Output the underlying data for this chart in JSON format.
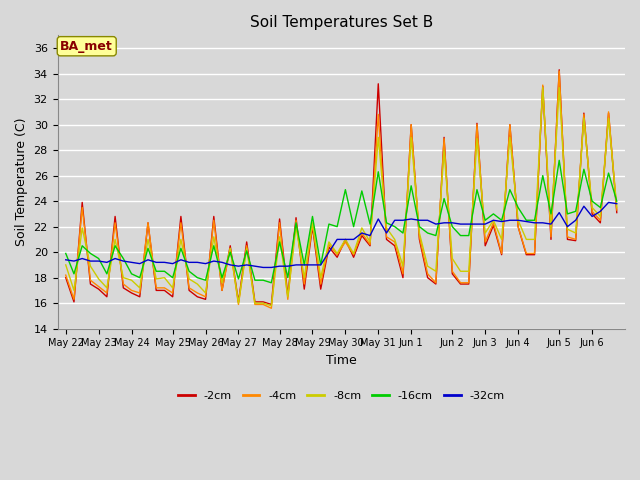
{
  "title": "Soil Temperatures Set B",
  "xlabel": "Time",
  "ylabel": "Soil Temperature (C)",
  "annotation": "BA_met",
  "ylim": [
    14,
    37
  ],
  "yticks": [
    14,
    16,
    18,
    20,
    22,
    24,
    26,
    28,
    30,
    32,
    34,
    36
  ],
  "background_color": "#d8d8d8",
  "legend_entries": [
    "-2cm",
    "-4cm",
    "-8cm",
    "-16cm",
    "-32cm"
  ],
  "line_colors": [
    "#cc0000",
    "#ff8800",
    "#cccc00",
    "#00cc00",
    "#0000cc"
  ],
  "x_labels": [
    "May 22",
    "May 23",
    "May 24",
    "May 25",
    "May 26",
    "May 27",
    "May 28",
    "May 29",
    "May 30",
    "May 31",
    "Jun 1",
    "Jun 2",
    "Jun 3",
    "Jun 4",
    "Jun 5",
    "Jun 6"
  ],
  "series": {
    "d2cm": [
      18.0,
      16.1,
      23.9,
      17.5,
      17.1,
      16.5,
      22.8,
      17.2,
      16.8,
      16.5,
      22.3,
      17.0,
      17.0,
      16.5,
      22.8,
      17.0,
      16.5,
      16.3,
      22.8,
      17.0,
      20.5,
      16.1,
      20.8,
      16.1,
      16.1,
      15.9,
      22.6,
      16.6,
      22.7,
      17.1,
      22.0,
      17.1,
      20.4,
      19.6,
      21.0,
      19.6,
      21.3,
      20.5,
      33.2,
      21.0,
      20.5,
      18.0,
      30.0,
      21.0,
      18.0,
      17.5,
      29.0,
      18.3,
      17.5,
      17.5,
      30.1,
      20.5,
      22.1,
      19.8,
      30.0,
      22.0,
      19.8,
      19.8,
      33.0,
      21.0,
      34.3,
      21.0,
      20.9,
      30.9,
      23.0,
      22.3,
      30.9,
      23.1
    ],
    "d4cm": [
      18.2,
      16.3,
      23.5,
      17.8,
      17.3,
      16.8,
      22.3,
      17.5,
      17.0,
      16.8,
      22.3,
      17.2,
      17.2,
      16.8,
      22.3,
      17.2,
      16.8,
      16.5,
      22.5,
      17.0,
      20.3,
      15.9,
      20.5,
      15.9,
      15.9,
      15.6,
      22.3,
      16.3,
      22.5,
      17.5,
      22.2,
      17.5,
      20.6,
      19.8,
      20.8,
      19.8,
      21.5,
      20.6,
      30.8,
      21.2,
      20.8,
      18.3,
      30.0,
      21.2,
      18.3,
      17.6,
      28.9,
      18.5,
      17.6,
      17.6,
      30.0,
      20.8,
      22.3,
      19.9,
      30.0,
      22.0,
      19.9,
      19.9,
      33.1,
      21.2,
      34.2,
      21.2,
      21.0,
      30.8,
      23.2,
      22.5,
      31.0,
      23.3
    ],
    "d8cm": [
      19.0,
      17.0,
      21.9,
      18.9,
      17.9,
      17.2,
      21.0,
      18.0,
      17.8,
      17.2,
      21.0,
      17.9,
      18.0,
      17.2,
      21.0,
      17.9,
      17.5,
      16.8,
      21.2,
      17.6,
      20.3,
      16.0,
      20.3,
      16.0,
      16.0,
      15.8,
      21.2,
      16.5,
      22.0,
      18.0,
      22.3,
      18.0,
      20.8,
      19.9,
      21.0,
      19.9,
      21.9,
      20.8,
      29.0,
      21.9,
      21.0,
      18.9,
      29.0,
      21.5,
      18.9,
      18.5,
      28.0,
      19.5,
      18.5,
      18.5,
      28.9,
      21.5,
      22.5,
      21.0,
      29.0,
      22.5,
      21.0,
      21.0,
      32.9,
      21.8,
      32.9,
      21.8,
      21.5,
      30.5,
      23.5,
      22.8,
      30.5,
      23.5
    ],
    "d16cm": [
      19.9,
      18.3,
      20.5,
      19.9,
      19.5,
      18.3,
      20.5,
      19.5,
      18.3,
      18.0,
      20.3,
      18.5,
      18.5,
      18.0,
      20.3,
      18.5,
      18.0,
      17.8,
      20.5,
      18.0,
      20.0,
      17.9,
      20.1,
      17.8,
      17.8,
      17.6,
      20.8,
      18.0,
      22.3,
      19.0,
      22.8,
      19.0,
      22.2,
      22.0,
      24.9,
      22.0,
      24.8,
      22.2,
      26.3,
      22.3,
      22.0,
      21.5,
      25.2,
      22.0,
      21.5,
      21.3,
      24.2,
      22.0,
      21.3,
      21.3,
      24.9,
      22.5,
      23.0,
      22.5,
      24.9,
      23.5,
      22.5,
      22.5,
      26.0,
      23.0,
      27.2,
      23.0,
      23.2,
      26.5,
      24.0,
      23.5,
      26.2,
      24.0
    ],
    "d32cm": [
      19.4,
      19.3,
      19.5,
      19.3,
      19.3,
      19.2,
      19.5,
      19.3,
      19.2,
      19.1,
      19.4,
      19.2,
      19.2,
      19.1,
      19.4,
      19.2,
      19.2,
      19.1,
      19.3,
      19.2,
      19.0,
      18.9,
      19.0,
      18.9,
      18.8,
      18.8,
      18.9,
      18.9,
      19.0,
      19.0,
      19.0,
      19.0,
      20.0,
      21.0,
      21.0,
      21.0,
      21.5,
      21.3,
      22.6,
      21.5,
      22.5,
      22.5,
      22.6,
      22.5,
      22.5,
      22.2,
      22.3,
      22.3,
      22.2,
      22.2,
      22.2,
      22.2,
      22.5,
      22.4,
      22.5,
      22.5,
      22.4,
      22.3,
      22.3,
      22.2,
      23.1,
      22.0,
      22.5,
      23.6,
      22.8,
      23.2,
      23.9,
      23.8
    ]
  }
}
